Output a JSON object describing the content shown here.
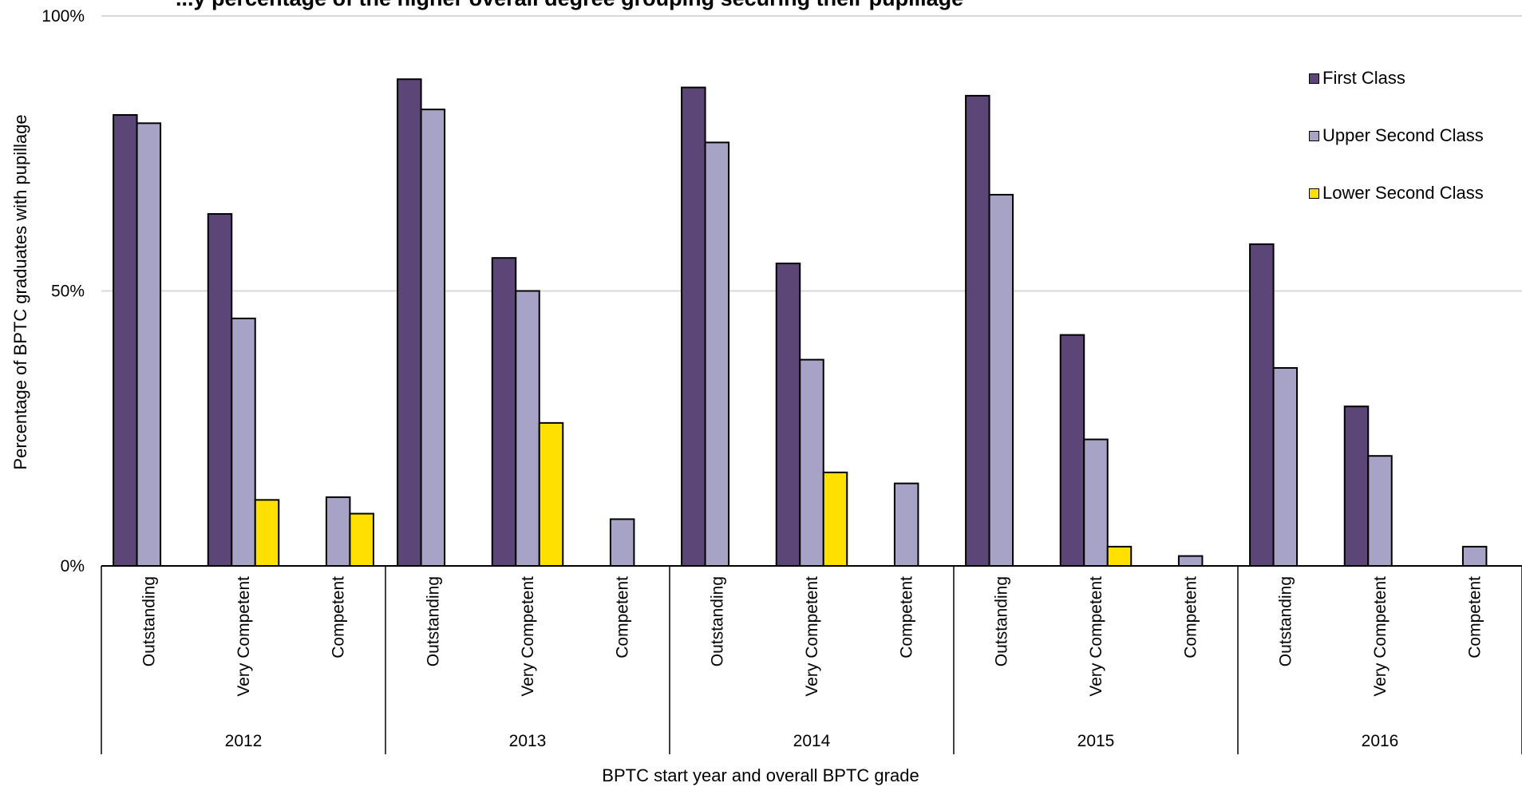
{
  "chart_data": {
    "type": "bar",
    "title": "...y percentage of the higher overall degree grouping securing their pupillage",
    "xlabel": "BPTC start year and overall BPTC grade",
    "ylabel": "Percentage of BPTC graduates with pupillage",
    "ylim": [
      0,
      100
    ],
    "y_ticks": [
      "0%",
      "50%",
      "100%"
    ],
    "grid": "horizontal",
    "legend_position": "top-right",
    "groups": [
      "2012",
      "2013",
      "2014",
      "2015",
      "2016"
    ],
    "categories": [
      "Outstanding",
      "Very Competent",
      "Competent"
    ],
    "series": [
      {
        "name": "First Class",
        "color": "#5c4677",
        "values": [
          [
            82,
            64,
            null
          ],
          [
            88.5,
            56,
            null
          ],
          [
            87,
            55,
            null
          ],
          [
            85.5,
            42,
            null
          ],
          [
            58.5,
            29,
            null
          ]
        ]
      },
      {
        "name": "Upper Second Class",
        "color": "#a7a3c6",
        "values": [
          [
            80.5,
            45,
            12.5
          ],
          [
            83,
            50,
            8.5
          ],
          [
            77,
            37.5,
            15
          ],
          [
            67.5,
            23,
            1.8
          ],
          [
            36,
            20,
            3.5
          ]
        ]
      },
      {
        "name": "Lower Second Class",
        "color": "#ffe000",
        "values": [
          [
            null,
            12,
            9.5
          ],
          [
            null,
            26,
            null
          ],
          [
            null,
            17,
            null
          ],
          [
            null,
            3.5,
            null
          ],
          [
            null,
            null,
            null
          ]
        ]
      }
    ]
  }
}
